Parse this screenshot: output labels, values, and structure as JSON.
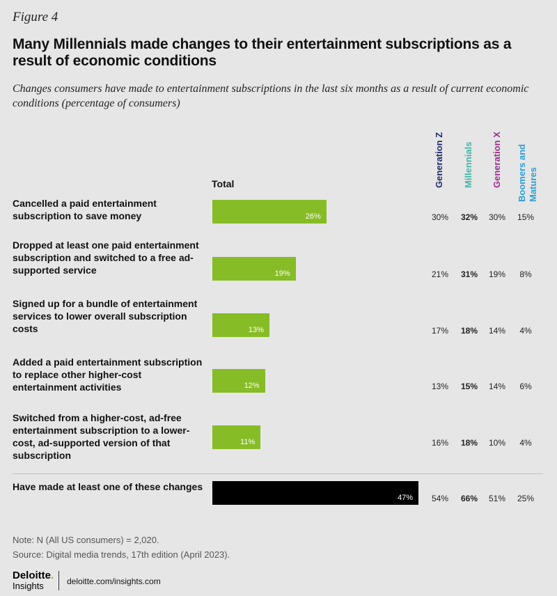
{
  "figure_label": "Figure 4",
  "title": "Many Millennials made changes to their entertainment subscriptions as a result of economic conditions",
  "subtitle": "Changes consumers have made to entertainment subscriptions in the last six months as a result of current economic conditions (percentage of consumers)",
  "colors": {
    "bar": "#86bc25",
    "summary_bar": "#000000",
    "gen_z": "#1f2a6b",
    "millennials": "#3fb6a8",
    "gen_x": "#9b2d8f",
    "boomers": "#2a9fd6"
  },
  "chart_data": {
    "type": "bar",
    "title": "Many Millennials made changes to their entertainment subscriptions as a result of economic conditions",
    "total_label": "Total",
    "xlim": [
      0,
      50
    ],
    "value_suffix": "%",
    "categories": [
      "Cancelled a paid entertainment subscription to save money",
      "Dropped at least one paid entertainment subscription  and switched to a free ad-supported service",
      "Signed up for a bundle of entertainment services to lower overall subscription costs",
      "Added a paid entertainment subscription to replace other higher-cost entertainment activities",
      "Switched from a higher-cost, ad-free entertainment subscription to a lower-cost, ad-supported version of that subscription",
      "Have made at least one of these changes"
    ],
    "values": [
      26,
      19,
      13,
      12,
      11,
      47
    ],
    "value_labels": [
      "26%",
      "19%",
      "13%",
      "12%",
      "11%",
      "47%"
    ],
    "series": [
      {
        "name": "Generation Z",
        "values": [
          "30%",
          "21%",
          "17%",
          "13%",
          "16%",
          "54%"
        ]
      },
      {
        "name": "Millennials",
        "values": [
          "32%",
          "31%",
          "18%",
          "15%",
          "18%",
          "66%"
        ]
      },
      {
        "name": "Generation X",
        "values": [
          "30%",
          "19%",
          "14%",
          "14%",
          "10%",
          "51%"
        ]
      },
      {
        "name": "Boomers and Matures",
        "values": [
          "15%",
          "8%",
          "4%",
          "6%",
          "4%",
          "25%"
        ]
      }
    ]
  },
  "note": "Note: N (All US consumers) = 2,020.",
  "source": "Source: Digital media trends, 17th edition (April 2023).",
  "logo": {
    "brand": "Deloitte",
    "dot": ".",
    "sub": "Insights"
  },
  "site": "deloitte.com/insights.com"
}
